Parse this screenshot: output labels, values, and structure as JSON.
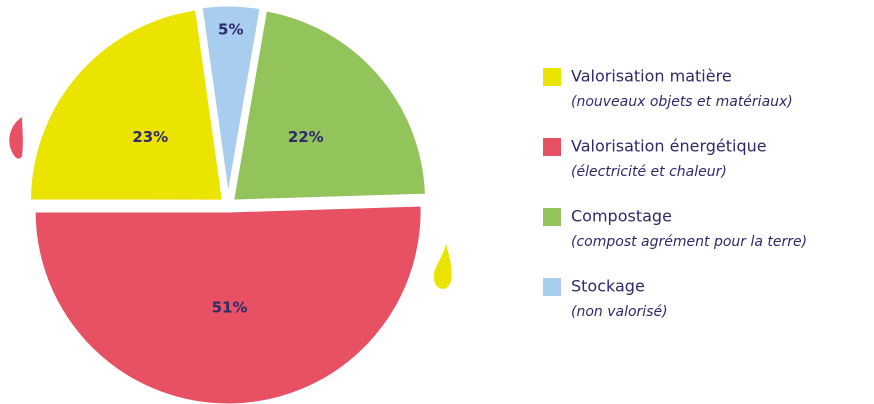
{
  "chart_data": {
    "type": "pie",
    "categories": [
      "Valorisation matière",
      "Valorisation énergétique",
      "Compostage",
      "Stockage"
    ],
    "descriptions": [
      "(nouveaux objets et matériaux)",
      "(électricité et chaleur)",
      "(compost agrément pour la terre)",
      "(non valorisé)"
    ],
    "values": [
      23,
      51,
      22,
      5
    ],
    "value_labels": [
      "23%",
      "51%",
      "22%",
      "5%"
    ],
    "colors": [
      "#ebe300",
      "#e75163",
      "#93c35b",
      "#a8cdef"
    ]
  }
}
